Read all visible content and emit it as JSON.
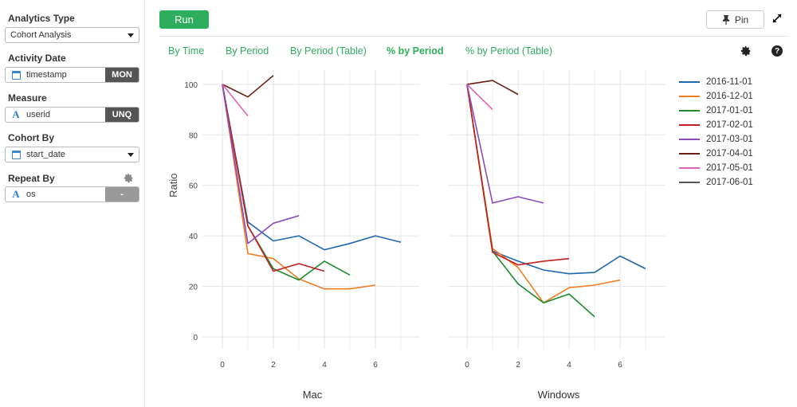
{
  "sidebar": {
    "analytics_type": {
      "label": "Analytics Type",
      "value": "Cohort Analysis"
    },
    "activity_date": {
      "label": "Activity Date",
      "value": "timestamp",
      "tag": "MON"
    },
    "measure": {
      "label": "Measure",
      "value": "userid",
      "tag": "UNQ"
    },
    "cohort_by": {
      "label": "Cohort By",
      "value": "start_date"
    },
    "repeat_by": {
      "label": "Repeat By",
      "value": "os",
      "tag": "-"
    }
  },
  "toolbar": {
    "run_label": "Run",
    "pin_label": "Pin"
  },
  "tabs": [
    {
      "label": "By Time",
      "active": false
    },
    {
      "label": "By Period",
      "active": false
    },
    {
      "label": "By Period (Table)",
      "active": false
    },
    {
      "label": "% by Period",
      "active": true
    },
    {
      "label": "% by Period (Table)",
      "active": false
    }
  ],
  "icons": {
    "help": "?",
    "calendar": "calendar-icon",
    "text_type": "A",
    "gear": "gear-icon",
    "pin": "pin-icon",
    "expand": "expand-icon"
  },
  "chart_data": {
    "type": "line",
    "ylabel": "Ratio",
    "ylim": [
      0,
      105
    ],
    "xlim": [
      0,
      7
    ],
    "yticks": [
      0,
      20,
      40,
      60,
      80,
      100
    ],
    "xticks": [
      0,
      2,
      4,
      6
    ],
    "grid": true,
    "legend_position": "right",
    "legend": [
      {
        "name": "2016-11-01",
        "color": "#1f66b0"
      },
      {
        "name": "2016-12-01",
        "color": "#f37b20"
      },
      {
        "name": "2017-01-01",
        "color": "#1a8c2a"
      },
      {
        "name": "2017-02-01",
        "color": "#c81e1e"
      },
      {
        "name": "2017-03-01",
        "color": "#8b4bbf"
      },
      {
        "name": "2017-04-01",
        "color": "#6b1e12"
      },
      {
        "name": "2017-05-01",
        "color": "#e062b7"
      },
      {
        "name": "2017-06-01",
        "color": "#555555"
      }
    ],
    "panels": [
      {
        "title": "Mac",
        "series": [
          {
            "name": "2016-11-01",
            "values": [
              100,
              45.5,
              38,
              40,
              34.5,
              37,
              40,
              37.5
            ]
          },
          {
            "name": "2016-12-01",
            "values": [
              100,
              33,
              31,
              23,
              19,
              19,
              20.5
            ]
          },
          {
            "name": "2017-01-01",
            "values": [
              100,
              44,
              27,
              22.5,
              30,
              24.5
            ]
          },
          {
            "name": "2017-02-01",
            "values": [
              100,
              44,
              26,
              29,
              26
            ]
          },
          {
            "name": "2017-03-01",
            "values": [
              100,
              37,
              45,
              48
            ]
          },
          {
            "name": "2017-04-01",
            "values": [
              100,
              95,
              103.5
            ]
          },
          {
            "name": "2017-05-01",
            "values": [
              100,
              87.5
            ]
          },
          {
            "name": "2017-06-01",
            "values": []
          }
        ]
      },
      {
        "title": "Windows",
        "series": [
          {
            "name": "2016-11-01",
            "values": [
              100,
              34,
              30,
              26.5,
              25,
              25.5,
              32,
              27
            ]
          },
          {
            "name": "2016-12-01",
            "values": [
              100,
              35,
              27.5,
              13.5,
              19.5,
              20.5,
              22.5
            ]
          },
          {
            "name": "2017-01-01",
            "values": [
              100,
              34,
              21,
              13.5,
              17,
              8
            ]
          },
          {
            "name": "2017-02-01",
            "values": [
              100,
              33.5,
              28.5,
              30,
              31
            ]
          },
          {
            "name": "2017-03-01",
            "values": [
              100,
              53,
              55.5,
              53
            ]
          },
          {
            "name": "2017-04-01",
            "values": [
              100,
              101.5,
              96
            ]
          },
          {
            "name": "2017-05-01",
            "values": [
              100,
              90
            ]
          },
          {
            "name": "2017-06-01",
            "values": []
          }
        ]
      }
    ]
  }
}
